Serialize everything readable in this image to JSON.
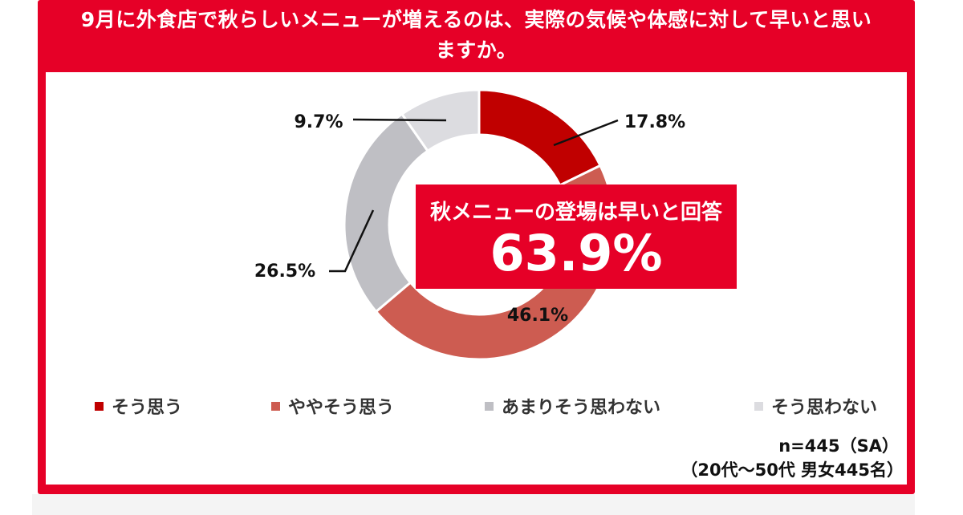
{
  "title": "9月に外食店で秋らしいメニューが増えるのは、実際の気候や体感に対して早いと思いますか。",
  "title_lines": [
    "9月に外食店で秋らしいメニューが増えるのは、実際の気候や体感に対して早いと思い",
    "ますか。"
  ],
  "callout": {
    "label": "秋メニューの登場は早いと回答",
    "value": "63.9%"
  },
  "note": {
    "sample": "n=445（SA）",
    "target": "（20代～50代 男女445名）"
  },
  "colors": {
    "frame": "#e60027",
    "slice_1": "#c00000",
    "slice_2": "#cd5c51",
    "slice_3": "#bfbfc4",
    "slice_4": "#dcdce0"
  },
  "chart_data": {
    "type": "pie",
    "donut": true,
    "unit": "%",
    "categories": [
      "そう思う",
      "ややそう思う",
      "あまりそう思わない",
      "そう思わない"
    ],
    "values": [
      17.8,
      46.1,
      26.5,
      9.7
    ],
    "labels": [
      "17.8%",
      "46.1%",
      "26.5%",
      "9.7%"
    ],
    "legend_position": "bottom"
  }
}
